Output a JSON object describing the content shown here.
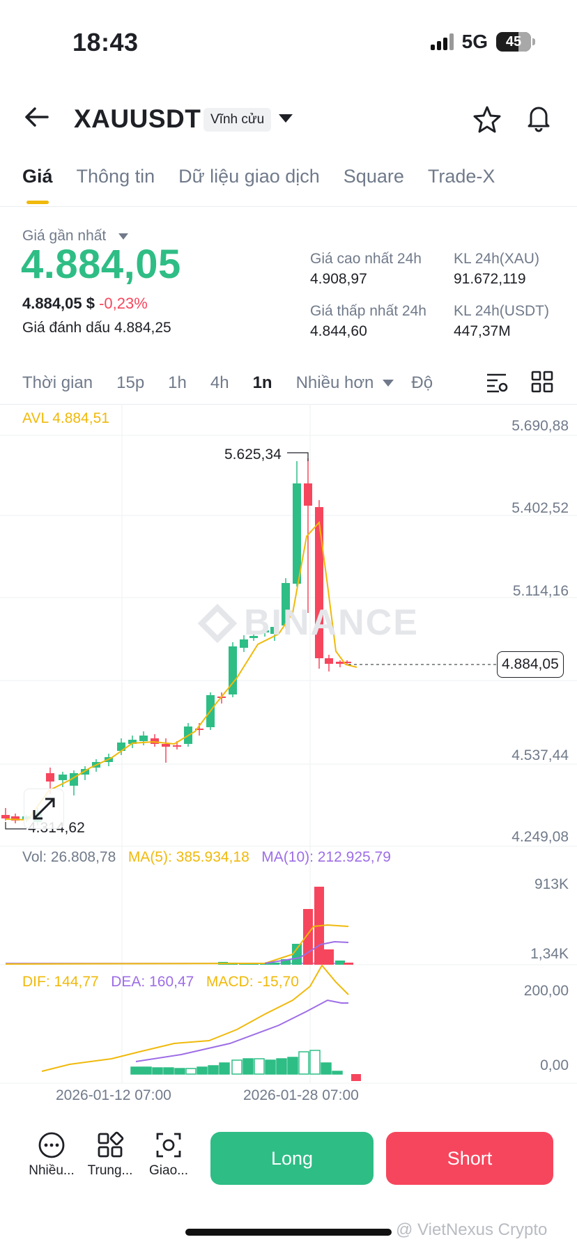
{
  "status_bar": {
    "time": "18:43",
    "network": "5G",
    "battery": "45"
  },
  "header": {
    "symbol": "XAUUSDT",
    "contract_type": "Vĩnh cửu"
  },
  "tabs": [
    {
      "label": "Giá",
      "active": true
    },
    {
      "label": "Thông tin"
    },
    {
      "label": "Dữ liệu giao dịch"
    },
    {
      "label": "Square"
    },
    {
      "label": "Trade-X"
    }
  ],
  "price_info": {
    "last_price_label": "Giá gần nhất",
    "last_price": "4.884,05",
    "usd_price": "4.884,05 $",
    "change_pct": "-0,23%",
    "mark_price_label": "Giá đánh dấu",
    "mark_price": "4.884,25",
    "high_24h_label": "Giá cao nhất 24h",
    "high_24h": "4.908,97",
    "low_24h_label": "Giá thấp nhất 24h",
    "low_24h": "4.844,60",
    "vol_xau_label": "KL 24h(XAU)",
    "vol_xau": "91.672,119",
    "vol_usdt_label": "KL 24h(USDT)",
    "vol_usdt": "447,37M"
  },
  "intervals": {
    "time_label": "Thời gian",
    "i15": "15p",
    "i1h": "1h",
    "i4h": "4h",
    "i1d": "1n",
    "more": "Nhiều hơn",
    "depth": "Độ"
  },
  "chart": {
    "avl_label": "AVL 4.884,51",
    "watermark": "BINANCE",
    "high_marker": "5.625,34",
    "low_marker": "4.314,62",
    "current_price_tag": "4.884,05",
    "y_ticks": [
      "5.690,88",
      "5.402,52",
      "5.114,16",
      "4.537,44",
      "4.249,08"
    ],
    "vol_line": {
      "vol": "Vol: 26.808,78",
      "ma5": "MA(5): 385.934,18",
      "ma10": "MA(10): 212.925,79"
    },
    "vol_ticks": [
      "913K",
      "1,34K"
    ],
    "macd_line": {
      "dif": "DIF: 144,77",
      "dea": "DEA: 160,47",
      "macd": "MACD: -15,70"
    },
    "macd_ticks": [
      "200,00",
      "0,00"
    ],
    "x_ticks": [
      "2026-01-12 07:00",
      "2026-01-28 07:00"
    ],
    "colors": {
      "up": "#2ebd85",
      "down": "#f6465d",
      "ma": "#f0b90b",
      "ma10": "#9d6de6"
    }
  },
  "bottom_nav": {
    "more": "Nhiều...",
    "center": "Trung...",
    "trade": "Giao...",
    "long": "Long",
    "short": "Short"
  },
  "overlay_watermark": "@ VietNexus Crypto"
}
